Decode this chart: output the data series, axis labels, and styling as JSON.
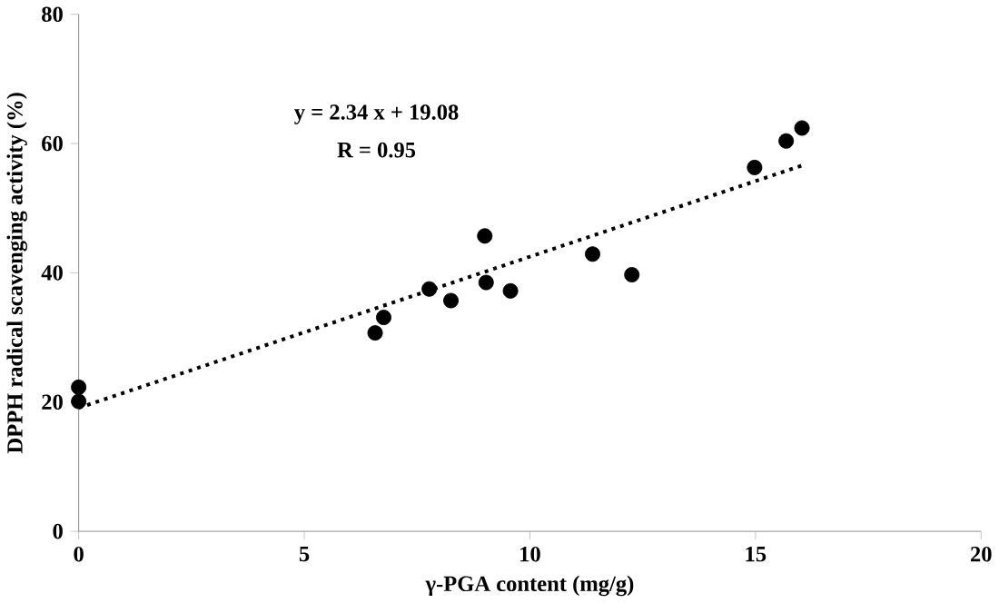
{
  "chart_data": {
    "type": "scatter",
    "xlabel": "γ-PGA content (mg/g)",
    "ylabel": "DPPH radical scavenging activity (%)",
    "xlim": [
      0,
      20
    ],
    "ylim": [
      0,
      80
    ],
    "xticks": [
      0,
      5,
      10,
      15,
      20
    ],
    "yticks": [
      0,
      20,
      40,
      60,
      80
    ],
    "grid": false,
    "annotations": [
      "y = 2.34 x + 19.08",
      "R = 0.95"
    ],
    "series": [
      {
        "marker": "circle",
        "color": "#000000",
        "x": [
          0,
          0,
          6.57,
          6.76,
          7.77,
          8.25,
          9.0,
          9.03,
          9.57,
          11.39,
          12.26,
          14.98,
          15.68,
          16.03
        ],
        "values": [
          22.3,
          20.1,
          30.7,
          33.1,
          37.5,
          35.7,
          45.7,
          38.5,
          37.2,
          42.9,
          39.7,
          56.3,
          60.4,
          62.4
        ]
      },
      {
        "type": "line",
        "color": "#000000",
        "line_style": "dotted",
        "marker": "none",
        "x": [
          0,
          16.03
        ],
        "values": [
          19.1,
          56.6
        ]
      }
    ]
  }
}
